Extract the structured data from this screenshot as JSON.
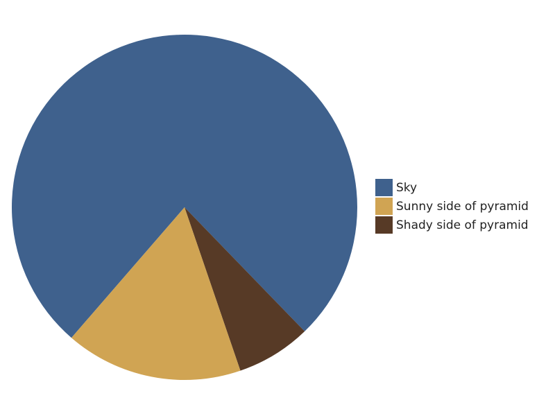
{
  "chart_data": {
    "type": "pie",
    "title": "",
    "legend_position": "right",
    "slices": [
      {
        "label": "Sky",
        "value": 76.4,
        "color": "#3f618d"
      },
      {
        "label": "Sunny side of pyramid",
        "value": 16.6,
        "color": "#d0a453"
      },
      {
        "label": "Shady side of pyramid",
        "value": 7.0,
        "color": "#573a26"
      }
    ]
  }
}
